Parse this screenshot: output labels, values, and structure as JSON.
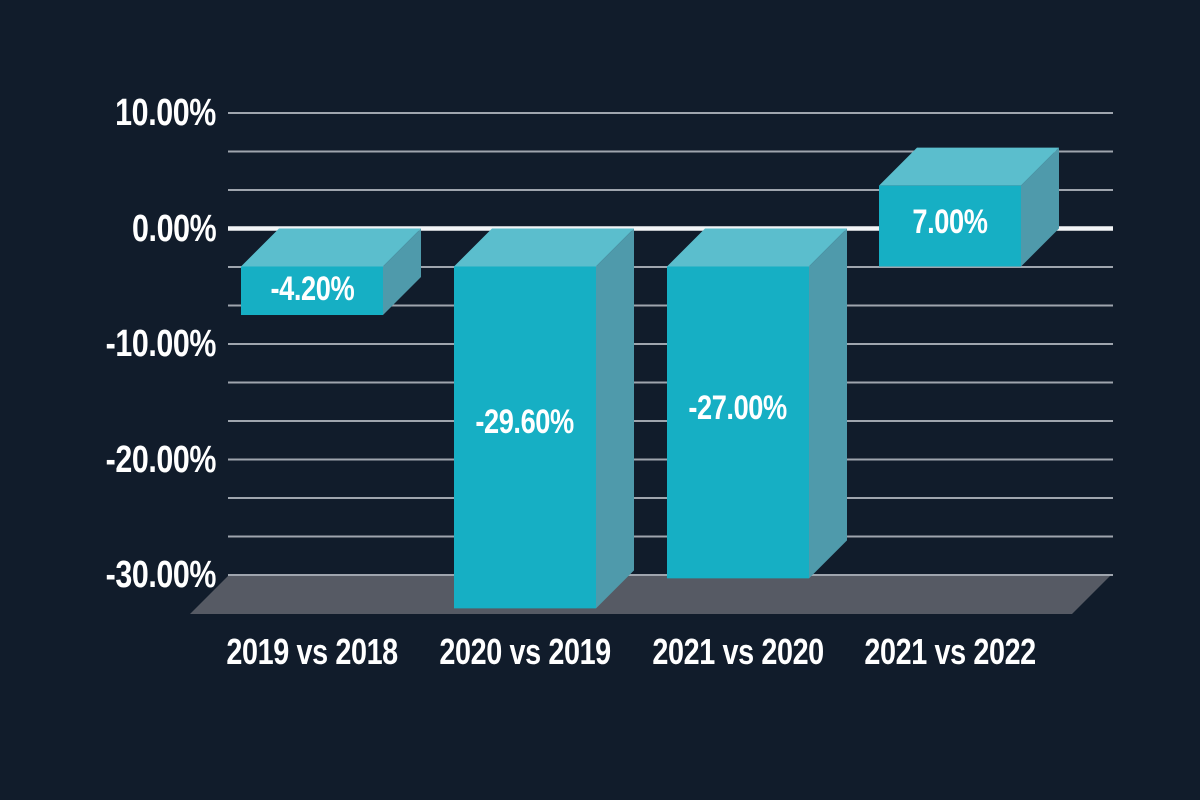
{
  "chart_data": {
    "type": "bar",
    "style": "3d-column",
    "title": "",
    "categories": [
      "2019 vs 2018",
      "2020 vs 2019",
      "2021 vs 2020",
      "2021 vs 2022"
    ],
    "values": [
      -4.2,
      -29.6,
      -27.0,
      7.0
    ],
    "value_labels": [
      "-4.20%",
      "-29.60%",
      "-27.00%",
      "7.00%"
    ],
    "yticks": [
      {
        "value": 10,
        "label": "10.00%"
      },
      {
        "value": 0,
        "label": "0.00%"
      },
      {
        "value": -10,
        "label": "-10.00%"
      },
      {
        "value": -20,
        "label": "-20.00%"
      },
      {
        "value": -30,
        "label": "-30.00%"
      }
    ],
    "ylim": [
      -30,
      10
    ],
    "minor_gridline_step_pct": 3.3333,
    "grid": true,
    "legend": false,
    "colors": {
      "background": "#111c2b",
      "bar_front": "#16afc4",
      "bar_top": "#5bbecd",
      "bar_side": "#4f9aab",
      "floor": "#565a64",
      "gridline": "#9fa5ae",
      "zero_line": "#f2f4f6",
      "text": "#ffffff"
    }
  }
}
